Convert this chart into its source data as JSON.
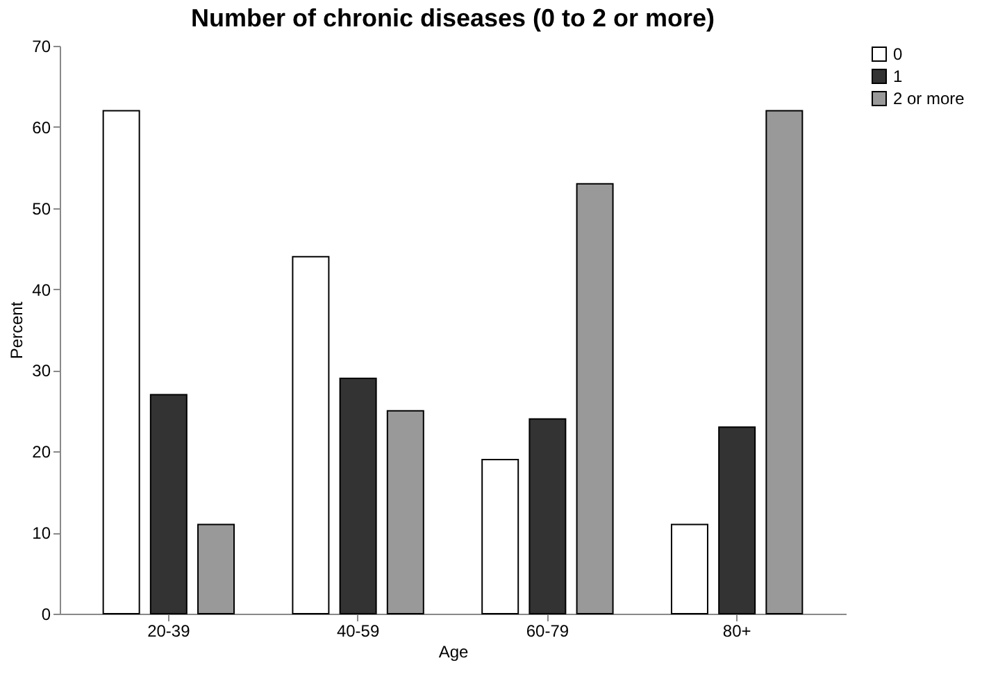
{
  "chart_data": {
    "type": "bar",
    "title": "Number of chronic diseases (0 to 2 or more)",
    "xlabel": "Age",
    "ylabel": "Percent",
    "categories": [
      "20-39",
      "40-59",
      "60-79",
      "80+"
    ],
    "series": [
      {
        "name": "0",
        "color": "#ffffff",
        "values": [
          62,
          44,
          19,
          11
        ]
      },
      {
        "name": "1",
        "color": "#333333",
        "values": [
          27,
          29,
          24,
          23
        ]
      },
      {
        "name": "2 or more",
        "color": "#999999",
        "values": [
          11,
          25,
          53,
          62
        ]
      }
    ],
    "ylim": [
      0,
      70
    ],
    "yticks": [
      0,
      10,
      20,
      30,
      40,
      50,
      60,
      70
    ],
    "grid": false,
    "legend": "right"
  }
}
